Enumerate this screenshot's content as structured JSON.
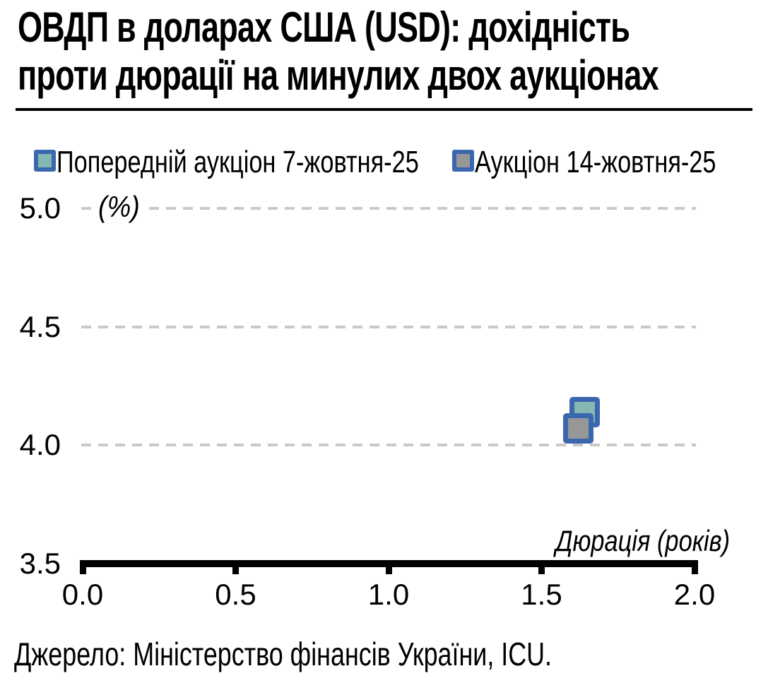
{
  "header": {
    "title_lines": [
      "ОВДП в доларах США (USD): дохідність",
      "проти дюрації на минулих двох аукціонах"
    ]
  },
  "chart_data": {
    "type": "scatter",
    "title": "ОВДП в доларах США (USD): дохідність проти дюрації на минулих двох аукціонах",
    "xlabel": "Дюрація (років)",
    "ylabel": "(%)",
    "xlim": [
      0.0,
      2.0
    ],
    "ylim": [
      3.5,
      5.0
    ],
    "x_ticks": [
      "0.0",
      "0.5",
      "1.0",
      "1.5",
      "2.0"
    ],
    "y_ticks": [
      "5.0",
      "4.5",
      "4.0",
      "3.5"
    ],
    "y_gridlines": [
      5.0,
      4.5,
      4.0
    ],
    "grid": "horizontal-dashed",
    "legend_position": "top-left",
    "gridline_color": "#c9c9c9",
    "axis_color": "#000000",
    "series": [
      {
        "name": "Попередній аукціон 7-жовтня-25",
        "marker": "square",
        "fill_color": "#84b8b1",
        "border_color": "#3a67ae",
        "points": [
          {
            "x": 1.64,
            "y": 4.14
          }
        ]
      },
      {
        "name": "Аукціон 14-жовтня-25",
        "marker": "square",
        "fill_color": "#979797",
        "border_color": "#3a67ae",
        "points": [
          {
            "x": 1.62,
            "y": 4.07
          }
        ]
      }
    ]
  },
  "footer": {
    "source": "Джерело: Міністерство фінансів України, ICU."
  }
}
